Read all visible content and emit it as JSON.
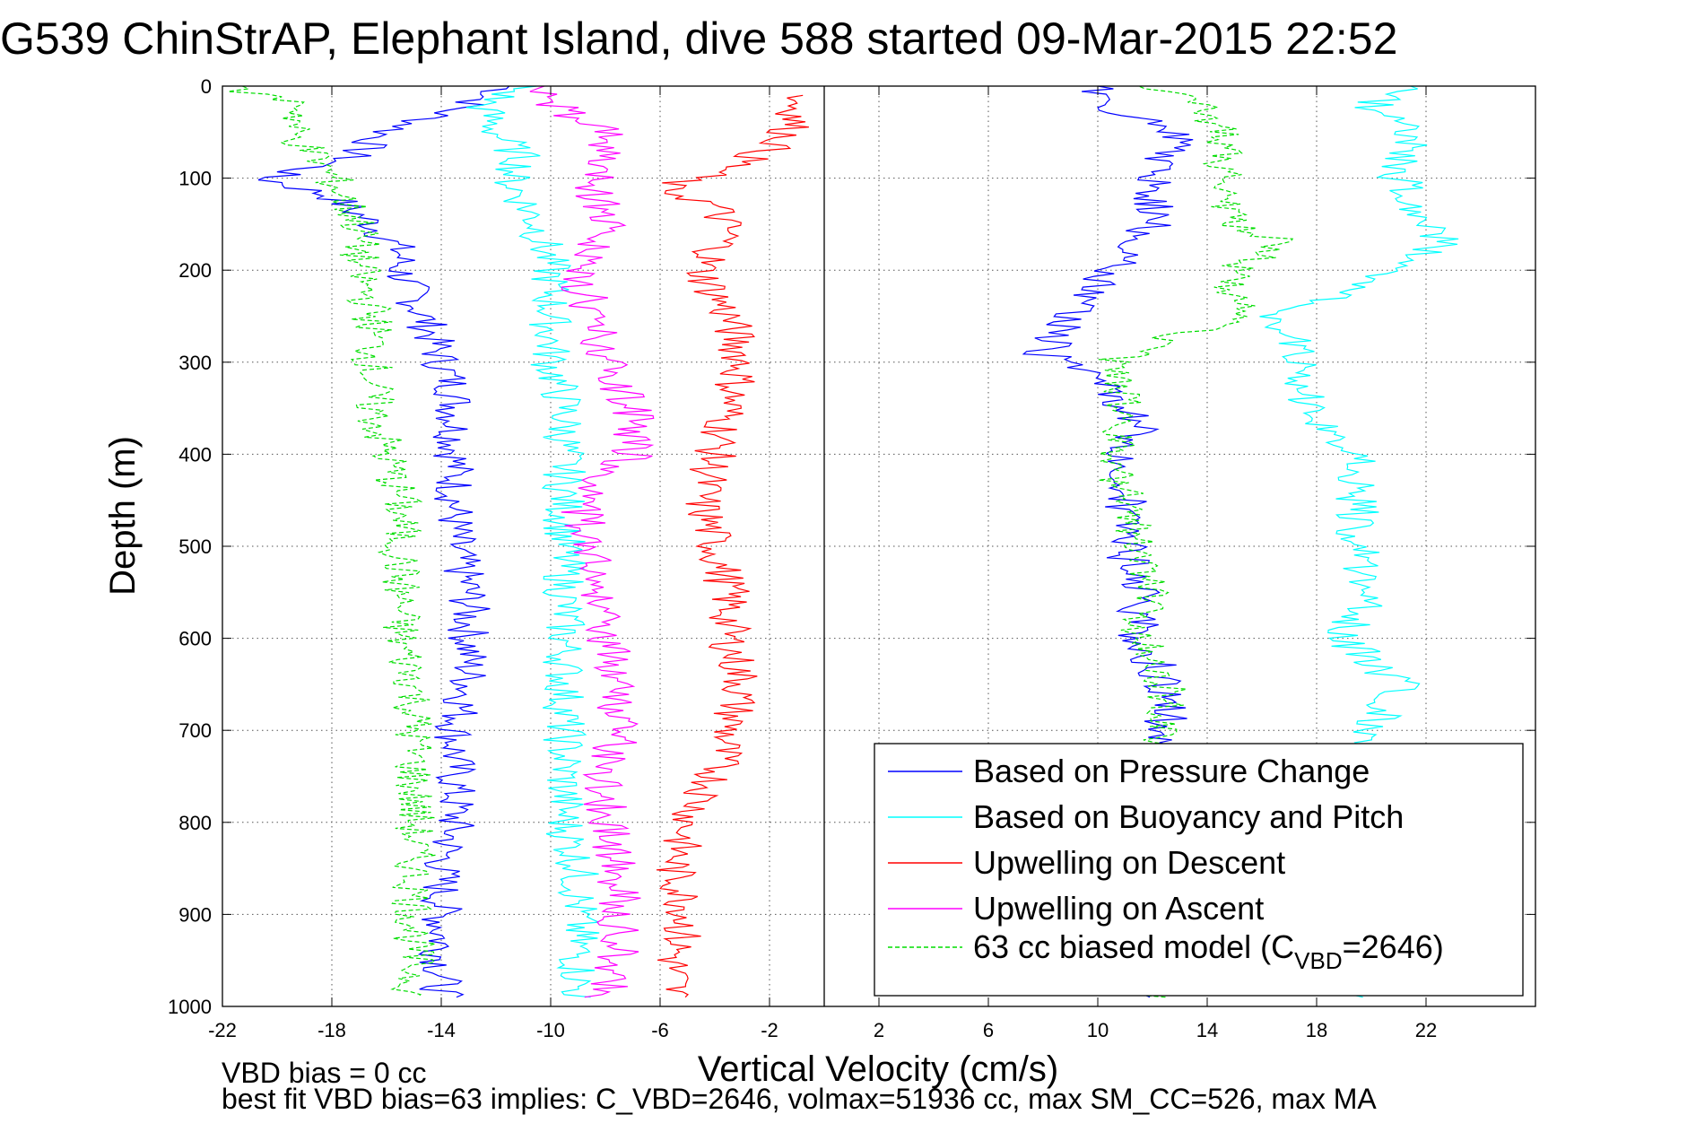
{
  "chart_data": {
    "type": "line",
    "title": "G539 ChinStrAP, Elephant Island, dive 588 started 09-Mar-2015 22:52",
    "xlabel": "Vertical Velocity (cm/s)",
    "ylabel": "Depth (m)",
    "xlim": [
      -22,
      26
    ],
    "ylim": [
      0,
      1000
    ],
    "y_reversed": true,
    "grid": true,
    "legend_position": "lower-right",
    "xticks": [
      -22,
      -18,
      -14,
      -10,
      -6,
      -2,
      2,
      6,
      10,
      14,
      18,
      22
    ],
    "yticks": [
      0,
      100,
      200,
      300,
      400,
      500,
      600,
      700,
      800,
      900,
      1000
    ],
    "zero_line_x": 0,
    "footnotes": [
      "VBD bias = 0 cc",
      "best fit VBD bias=63 implies: C_VBD=2646, volmax=51936 cc, max SM_CC=526, max MA"
    ],
    "series": [
      {
        "name": "Based on Pressure Change",
        "color": "#0000ff",
        "style": "solid",
        "descent": {
          "depth": [
            0,
            20,
            50,
            80,
            100,
            120,
            150,
            180,
            200,
            230,
            260,
            300,
            330,
            360,
            400,
            450,
            500,
            550,
            600,
            650,
            700,
            750,
            800,
            850,
            900,
            950,
            990
          ],
          "velocity": [
            -11.5,
            -13,
            -16,
            -17.5,
            -20.5,
            -18,
            -16.5,
            -15.5,
            -15.5,
            -15,
            -14.5,
            -14,
            -13.5,
            -13.5,
            -13.5,
            -13.5,
            -13.5,
            -13,
            -13,
            -13,
            -13.5,
            -13.5,
            -13.5,
            -14,
            -14,
            -14,
            -14
          ]
        },
        "ascent": {
          "depth": [
            990,
            950,
            900,
            850,
            800,
            750,
            700,
            650,
            600,
            550,
            500,
            450,
            400,
            370,
            350,
            320,
            290,
            270,
            250,
            220,
            200,
            170,
            150,
            120,
            100,
            70,
            50,
            20,
            0
          ],
          "velocity": [
            11.5,
            12.5,
            12.5,
            12.5,
            12.5,
            12.5,
            12.5,
            12.5,
            11.5,
            11.5,
            11,
            11,
            11,
            11.5,
            11,
            10,
            8,
            8.5,
            9,
            10,
            10.5,
            11.5,
            12,
            12,
            12,
            12.5,
            13,
            10,
            10
          ]
        }
      },
      {
        "name": "Based on Buoyancy and Pitch",
        "color": "#00ffff",
        "style": "solid",
        "descent": {
          "depth": [
            0,
            20,
            50,
            80,
            100,
            150,
            200,
            250,
            300,
            350,
            400,
            450,
            500,
            550,
            600,
            650,
            700,
            750,
            800,
            850,
            900,
            950,
            990
          ],
          "velocity": [
            -11,
            -12.5,
            -12,
            -11,
            -11.5,
            -10.5,
            -10,
            -10,
            -10,
            -9.5,
            -9.5,
            -9.5,
            -9.5,
            -9.5,
            -9.5,
            -9.5,
            -9.5,
            -9.5,
            -9.5,
            -9,
            -9,
            -9,
            -9
          ]
        },
        "ascent": {
          "depth": [
            990,
            950,
            900,
            850,
            800,
            750,
            700,
            650,
            600,
            550,
            500,
            450,
            400,
            350,
            300,
            250,
            200,
            170,
            150,
            100,
            50,
            20,
            0
          ],
          "velocity": [
            19,
            19,
            19,
            19,
            19,
            19,
            20,
            21,
            19,
            20,
            19.5,
            19.5,
            19.5,
            17.5,
            17.5,
            16.5,
            21,
            22.5,
            22,
            21,
            21.5,
            20,
            22
          ]
        }
      },
      {
        "name": "Upwelling on Descent",
        "color": "#ff0000",
        "style": "solid",
        "descent": {
          "depth": [
            10,
            30,
            60,
            90,
            110,
            130,
            160,
            200,
            250,
            300,
            350,
            400,
            450,
            500,
            550,
            600,
            650,
            700,
            750,
            800,
            850,
            900,
            950,
            990
          ],
          "velocity": [
            -1,
            -1,
            -1.5,
            -3.5,
            -6,
            -4,
            -3.5,
            -4.5,
            -3.5,
            -3,
            -3.5,
            -4,
            -4.5,
            -4,
            -3.5,
            -3.5,
            -3,
            -3.5,
            -4,
            -5,
            -5.5,
            -5,
            -5.5,
            -5.5
          ]
        }
      },
      {
        "name": "Upwelling on Ascent",
        "color": "#ff00ff",
        "style": "solid",
        "ascent": {
          "depth": [
            990,
            950,
            900,
            850,
            800,
            750,
            700,
            650,
            600,
            550,
            500,
            450,
            400,
            350,
            300,
            250,
            200,
            150,
            100,
            50,
            20,
            0
          ],
          "velocity": [
            -8,
            -7.5,
            -7.5,
            -7.5,
            -8,
            -8,
            -7.5,
            -7.5,
            -8,
            -8.5,
            -8.5,
            -9,
            -7,
            -7,
            -8,
            -8.5,
            -9,
            -8,
            -8.5,
            -8,
            -10,
            -10
          ]
        }
      },
      {
        "name": "63 cc biased model (C",
        "name_subscript": "VBD",
        "name_suffix": "=2646)",
        "color": "#00dd00",
        "style": "dashed",
        "descent": {
          "depth": [
            0,
            20,
            50,
            80,
            100,
            150,
            200,
            250,
            300,
            350,
            400,
            450,
            500,
            550,
            600,
            650,
            700,
            750,
            800,
            850,
            900,
            950,
            990
          ],
          "velocity": [
            -22,
            -19,
            -19.5,
            -18.5,
            -18,
            -17,
            -17,
            -16.5,
            -16.5,
            -16.5,
            -16,
            -15.5,
            -15.5,
            -15.5,
            -15.5,
            -15,
            -15,
            -15,
            -15,
            -15,
            -15,
            -15,
            -15
          ]
        },
        "ascent": {
          "depth": [
            990,
            950,
            900,
            850,
            800,
            750,
            700,
            650,
            600,
            550,
            500,
            450,
            400,
            350,
            300,
            280,
            250,
            200,
            170,
            150,
            100,
            50,
            20,
            0
          ],
          "velocity": [
            12,
            12,
            12,
            12,
            12,
            12,
            12.5,
            12.5,
            11.5,
            12,
            11.5,
            11,
            10.5,
            11,
            10.5,
            12,
            15,
            15,
            17,
            15,
            14.5,
            14.5,
            14,
            12
          ]
        }
      }
    ]
  }
}
